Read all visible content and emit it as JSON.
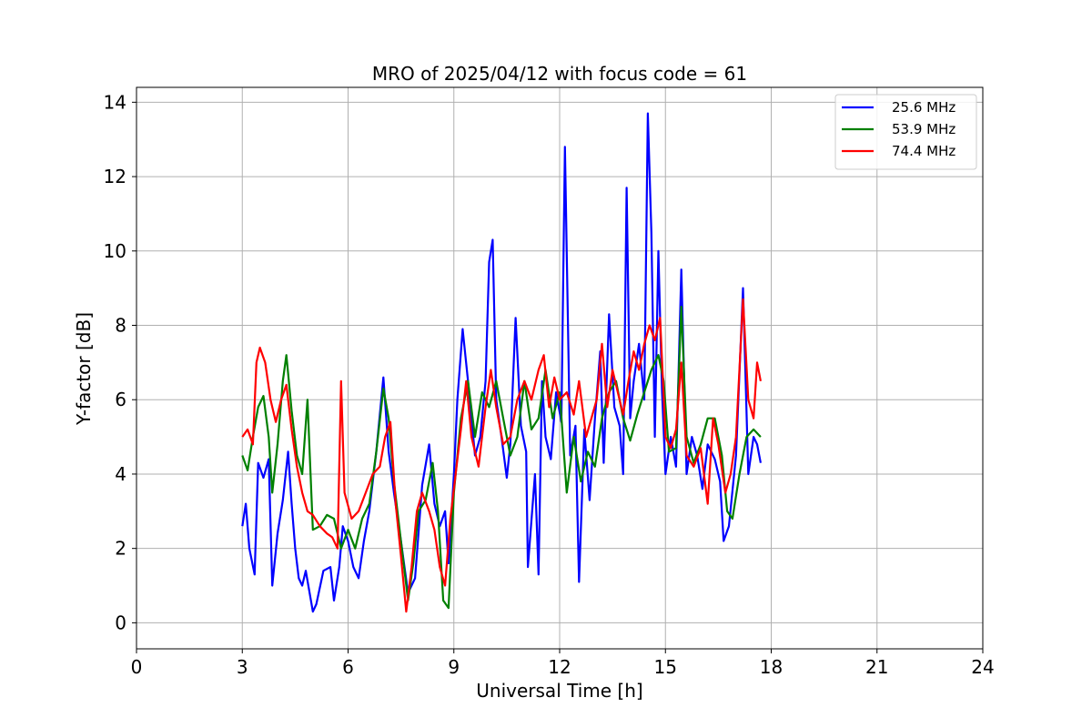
{
  "chart_data": {
    "type": "line",
    "title": "MRO of 2025/04/12 with focus code = 61",
    "xlabel": "Universal Time [h]",
    "ylabel": "Y-factor [dB]",
    "xlim": [
      0,
      24
    ],
    "ylim": [
      -0.7,
      14.4
    ],
    "xticks": [
      0,
      3,
      6,
      9,
      12,
      15,
      18,
      21,
      24
    ],
    "yticks": [
      0,
      2,
      4,
      6,
      8,
      10,
      12,
      14
    ],
    "grid": true,
    "legend_position": "top-right",
    "series": [
      {
        "name": "25.6 MHz",
        "color": "#0000ff",
        "points": [
          [
            3.0,
            2.6
          ],
          [
            3.1,
            3.2
          ],
          [
            3.2,
            2.0
          ],
          [
            3.35,
            1.3
          ],
          [
            3.45,
            4.3
          ],
          [
            3.6,
            3.9
          ],
          [
            3.75,
            4.4
          ],
          [
            3.85,
            1.0
          ],
          [
            4.0,
            2.4
          ],
          [
            4.15,
            3.3
          ],
          [
            4.3,
            4.6
          ],
          [
            4.4,
            3.2
          ],
          [
            4.5,
            2.0
          ],
          [
            4.6,
            1.2
          ],
          [
            4.7,
            1.0
          ],
          [
            4.8,
            1.4
          ],
          [
            5.0,
            0.3
          ],
          [
            5.1,
            0.5
          ],
          [
            5.3,
            1.4
          ],
          [
            5.5,
            1.5
          ],
          [
            5.6,
            0.6
          ],
          [
            5.75,
            1.5
          ],
          [
            5.85,
            2.6
          ],
          [
            6.0,
            2.2
          ],
          [
            6.15,
            1.5
          ],
          [
            6.3,
            1.2
          ],
          [
            6.45,
            2.2
          ],
          [
            6.6,
            3.0
          ],
          [
            6.8,
            4.6
          ],
          [
            7.0,
            6.6
          ],
          [
            7.15,
            4.6
          ],
          [
            7.3,
            3.5
          ],
          [
            7.5,
            2.2
          ],
          [
            7.7,
            0.8
          ],
          [
            7.9,
            1.2
          ],
          [
            8.1,
            3.7
          ],
          [
            8.3,
            4.8
          ],
          [
            8.45,
            3.2
          ],
          [
            8.6,
            2.6
          ],
          [
            8.75,
            3.0
          ],
          [
            8.85,
            1.6
          ],
          [
            9.0,
            4.0
          ],
          [
            9.1,
            6.0
          ],
          [
            9.25,
            7.9
          ],
          [
            9.4,
            6.5
          ],
          [
            9.6,
            4.5
          ],
          [
            9.75,
            5.0
          ],
          [
            9.9,
            6.5
          ],
          [
            10.0,
            9.7
          ],
          [
            10.1,
            10.3
          ],
          [
            10.2,
            6.0
          ],
          [
            10.35,
            5.0
          ],
          [
            10.5,
            3.9
          ],
          [
            10.6,
            4.8
          ],
          [
            10.75,
            8.2
          ],
          [
            10.9,
            5.3
          ],
          [
            11.05,
            4.6
          ],
          [
            11.1,
            1.5
          ],
          [
            11.3,
            4.0
          ],
          [
            11.4,
            1.3
          ],
          [
            11.5,
            6.5
          ],
          [
            11.6,
            5.0
          ],
          [
            11.75,
            4.4
          ],
          [
            11.9,
            6.2
          ],
          [
            12.05,
            5.4
          ],
          [
            12.15,
            12.8
          ],
          [
            12.3,
            4.5
          ],
          [
            12.45,
            5.3
          ],
          [
            12.55,
            1.1
          ],
          [
            12.7,
            5.2
          ],
          [
            12.85,
            3.3
          ],
          [
            13.0,
            5.5
          ],
          [
            13.15,
            7.3
          ],
          [
            13.25,
            4.3
          ],
          [
            13.4,
            8.3
          ],
          [
            13.55,
            5.8
          ],
          [
            13.7,
            5.3
          ],
          [
            13.8,
            4.0
          ],
          [
            13.9,
            11.7
          ],
          [
            14.0,
            5.5
          ],
          [
            14.1,
            6.5
          ],
          [
            14.25,
            7.5
          ],
          [
            14.4,
            6.0
          ],
          [
            14.5,
            13.7
          ],
          [
            14.6,
            10.5
          ],
          [
            14.7,
            5.0
          ],
          [
            14.8,
            10.0
          ],
          [
            14.9,
            6.3
          ],
          [
            15.0,
            4.0
          ],
          [
            15.15,
            5.0
          ],
          [
            15.3,
            4.2
          ],
          [
            15.45,
            9.5
          ],
          [
            15.6,
            4.0
          ],
          [
            15.75,
            5.0
          ],
          [
            15.9,
            4.5
          ],
          [
            16.05,
            3.6
          ],
          [
            16.2,
            4.8
          ],
          [
            16.4,
            4.4
          ],
          [
            16.55,
            3.8
          ],
          [
            16.65,
            2.2
          ],
          [
            16.8,
            2.6
          ],
          [
            17.0,
            4.5
          ],
          [
            17.2,
            9.0
          ],
          [
            17.35,
            4.0
          ],
          [
            17.5,
            5.0
          ],
          [
            17.6,
            4.8
          ],
          [
            17.7,
            4.3
          ]
        ]
      },
      {
        "name": "53.9 MHz",
        "color": "#008000",
        "points": [
          [
            3.0,
            4.5
          ],
          [
            3.15,
            4.1
          ],
          [
            3.3,
            5.0
          ],
          [
            3.45,
            5.8
          ],
          [
            3.6,
            6.1
          ],
          [
            3.75,
            5.0
          ],
          [
            3.85,
            3.5
          ],
          [
            4.0,
            4.8
          ],
          [
            4.15,
            6.5
          ],
          [
            4.25,
            7.2
          ],
          [
            4.4,
            5.7
          ],
          [
            4.55,
            4.5
          ],
          [
            4.7,
            4.0
          ],
          [
            4.85,
            6.0
          ],
          [
            5.0,
            2.5
          ],
          [
            5.2,
            2.6
          ],
          [
            5.4,
            2.9
          ],
          [
            5.6,
            2.8
          ],
          [
            5.8,
            2.0
          ],
          [
            6.0,
            2.5
          ],
          [
            6.2,
            2.0
          ],
          [
            6.4,
            2.8
          ],
          [
            6.6,
            3.2
          ],
          [
            6.8,
            4.6
          ],
          [
            7.0,
            6.3
          ],
          [
            7.15,
            5.5
          ],
          [
            7.3,
            3.8
          ],
          [
            7.5,
            2.2
          ],
          [
            7.7,
            0.6
          ],
          [
            7.85,
            1.6
          ],
          [
            8.0,
            3.0
          ],
          [
            8.2,
            3.3
          ],
          [
            8.4,
            4.3
          ],
          [
            8.55,
            3.0
          ],
          [
            8.7,
            0.6
          ],
          [
            8.85,
            0.4
          ],
          [
            9.0,
            3.5
          ],
          [
            9.2,
            5.5
          ],
          [
            9.4,
            6.5
          ],
          [
            9.6,
            5.0
          ],
          [
            9.8,
            6.2
          ],
          [
            10.0,
            5.8
          ],
          [
            10.2,
            6.5
          ],
          [
            10.4,
            5.5
          ],
          [
            10.6,
            4.5
          ],
          [
            10.8,
            5.0
          ],
          [
            11.0,
            6.5
          ],
          [
            11.2,
            5.2
          ],
          [
            11.4,
            5.5
          ],
          [
            11.6,
            6.8
          ],
          [
            11.8,
            5.5
          ],
          [
            12.0,
            6.2
          ],
          [
            12.2,
            3.5
          ],
          [
            12.4,
            5.0
          ],
          [
            12.6,
            3.8
          ],
          [
            12.8,
            4.6
          ],
          [
            13.0,
            4.2
          ],
          [
            13.2,
            5.5
          ],
          [
            13.4,
            6.2
          ],
          [
            13.6,
            6.5
          ],
          [
            13.8,
            5.5
          ],
          [
            14.0,
            4.9
          ],
          [
            14.2,
            5.6
          ],
          [
            14.4,
            6.2
          ],
          [
            14.6,
            6.8
          ],
          [
            14.8,
            7.2
          ],
          [
            14.95,
            6.5
          ],
          [
            15.1,
            4.6
          ],
          [
            15.3,
            4.7
          ],
          [
            15.45,
            8.5
          ],
          [
            15.6,
            5.0
          ],
          [
            15.8,
            4.3
          ],
          [
            16.0,
            4.8
          ],
          [
            16.2,
            5.5
          ],
          [
            16.4,
            5.5
          ],
          [
            16.6,
            4.5
          ],
          [
            16.75,
            3.0
          ],
          [
            16.9,
            2.8
          ],
          [
            17.1,
            4.0
          ],
          [
            17.3,
            5.0
          ],
          [
            17.5,
            5.2
          ],
          [
            17.7,
            5.0
          ]
        ]
      },
      {
        "name": "74.4 MHz",
        "color": "#ff0000",
        "points": [
          [
            3.0,
            5.0
          ],
          [
            3.15,
            5.2
          ],
          [
            3.3,
            4.8
          ],
          [
            3.4,
            7.0
          ],
          [
            3.5,
            7.4
          ],
          [
            3.65,
            7.0
          ],
          [
            3.8,
            6.0
          ],
          [
            3.95,
            5.4
          ],
          [
            4.1,
            6.0
          ],
          [
            4.25,
            6.4
          ],
          [
            4.4,
            5.2
          ],
          [
            4.55,
            4.2
          ],
          [
            4.7,
            3.5
          ],
          [
            4.85,
            3.0
          ],
          [
            5.0,
            2.9
          ],
          [
            5.2,
            2.6
          ],
          [
            5.4,
            2.4
          ],
          [
            5.55,
            2.3
          ],
          [
            5.7,
            2.0
          ],
          [
            5.8,
            6.5
          ],
          [
            5.9,
            3.5
          ],
          [
            6.1,
            2.8
          ],
          [
            6.3,
            3.0
          ],
          [
            6.5,
            3.5
          ],
          [
            6.7,
            4.0
          ],
          [
            6.9,
            4.2
          ],
          [
            7.05,
            5.0
          ],
          [
            7.2,
            5.4
          ],
          [
            7.35,
            3.2
          ],
          [
            7.5,
            1.8
          ],
          [
            7.65,
            0.3
          ],
          [
            7.8,
            1.5
          ],
          [
            7.95,
            3.0
          ],
          [
            8.1,
            3.5
          ],
          [
            8.3,
            3.0
          ],
          [
            8.45,
            2.5
          ],
          [
            8.6,
            1.5
          ],
          [
            8.75,
            1.0
          ],
          [
            8.9,
            2.8
          ],
          [
            9.05,
            4.0
          ],
          [
            9.2,
            5.2
          ],
          [
            9.35,
            6.5
          ],
          [
            9.5,
            5.0
          ],
          [
            9.7,
            4.2
          ],
          [
            9.9,
            5.8
          ],
          [
            10.05,
            6.8
          ],
          [
            10.2,
            5.8
          ],
          [
            10.4,
            4.8
          ],
          [
            10.6,
            5.0
          ],
          [
            10.8,
            6.0
          ],
          [
            11.0,
            6.5
          ],
          [
            11.2,
            6.0
          ],
          [
            11.4,
            6.8
          ],
          [
            11.55,
            7.2
          ],
          [
            11.7,
            5.8
          ],
          [
            11.85,
            6.6
          ],
          [
            12.0,
            6.0
          ],
          [
            12.2,
            6.2
          ],
          [
            12.4,
            5.6
          ],
          [
            12.55,
            6.5
          ],
          [
            12.75,
            5.0
          ],
          [
            12.9,
            5.5
          ],
          [
            13.05,
            6.0
          ],
          [
            13.2,
            7.5
          ],
          [
            13.35,
            5.8
          ],
          [
            13.5,
            6.8
          ],
          [
            13.65,
            6.2
          ],
          [
            13.8,
            5.6
          ],
          [
            13.95,
            6.5
          ],
          [
            14.1,
            7.3
          ],
          [
            14.25,
            6.8
          ],
          [
            14.4,
            7.5
          ],
          [
            14.55,
            8.0
          ],
          [
            14.7,
            7.6
          ],
          [
            14.85,
            8.2
          ],
          [
            15.0,
            5.0
          ],
          [
            15.15,
            4.7
          ],
          [
            15.3,
            5.2
          ],
          [
            15.45,
            7.0
          ],
          [
            15.6,
            4.5
          ],
          [
            15.8,
            4.2
          ],
          [
            16.0,
            4.7
          ],
          [
            16.2,
            3.2
          ],
          [
            16.35,
            5.5
          ],
          [
            16.5,
            4.8
          ],
          [
            16.7,
            3.5
          ],
          [
            16.85,
            4.0
          ],
          [
            17.0,
            5.0
          ],
          [
            17.2,
            8.7
          ],
          [
            17.35,
            6.0
          ],
          [
            17.5,
            5.5
          ],
          [
            17.6,
            7.0
          ],
          [
            17.7,
            6.5
          ]
        ]
      }
    ]
  }
}
